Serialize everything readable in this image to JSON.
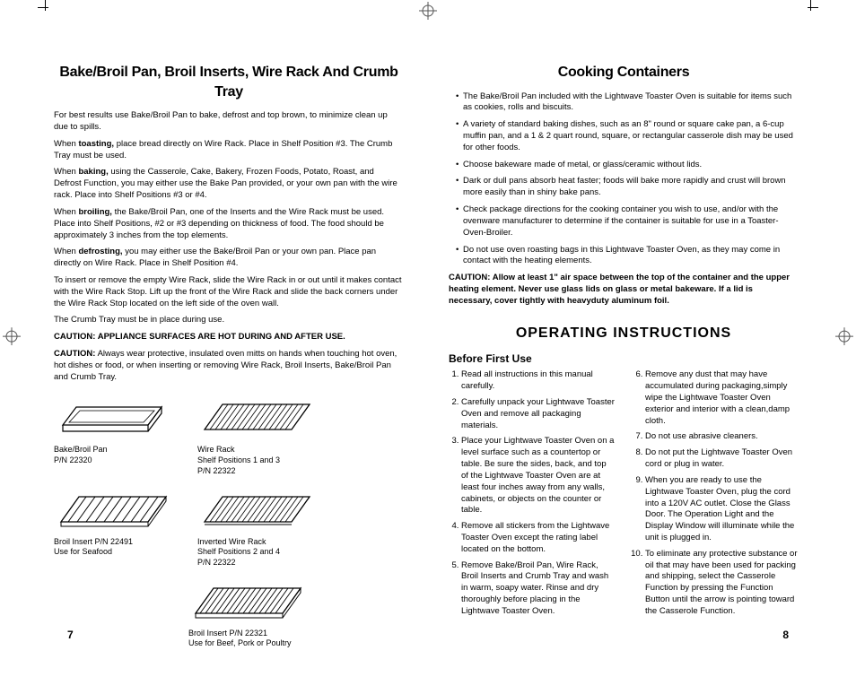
{
  "left_page": {
    "title": "Bake/Broil Pan, Broil Inserts, Wire Rack And Crumb Tray",
    "p1": "For best results use Bake/Broil Pan to bake, defrost and top brown, to minimize clean up due to spills.",
    "p2a": "When ",
    "p2b": "toasting,",
    "p2c": " place bread directly on Wire Rack. Place in Shelf Position #3. The Crumb Tray must be used.",
    "p3a": "When ",
    "p3b": "baking,",
    "p3c": " using the Casserole, Cake, Bakery, Frozen Foods, Potato, Roast, and Defrost Function, you may either use the Bake Pan provided, or your own pan with the wire rack. Place into Shelf Positions #3 or #4.",
    "p4a": "When ",
    "p4b": "broiling,",
    "p4c": " the Bake/Broil Pan, one of the Inserts and the Wire Rack must be used. Place into Shelf Positions, #2 or #3 depending on thickness of food. The food should be approximately 3 inches from the top elements.",
    "p5a": "When ",
    "p5b": "defrosting,",
    "p5c": " you may either use the Bake/Broil Pan or your own pan. Place pan directly on Wire Rack. Place in Shelf Position #4.",
    "p6": "To insert or remove the empty Wire Rack, slide the Wire Rack in or out until it makes contact with the Wire Rack Stop. Lift up the front of the Wire Rack and slide the back corners under the Wire Rack Stop located on the left side of the oven wall.",
    "p7": "The Crumb Tray must be in place during use.",
    "caution1": "CAUTION: APPLIANCE SURFACES ARE HOT DURING AND AFTER USE.",
    "caution2a": "CAUTION:",
    "caution2b": " Always wear protective, insulated oven mitts on hands when touching hot oven, hot dishes or food, or when inserting or removing Wire Rack, Broil Inserts, Bake/Broil Pan and Crumb Tray.",
    "figs": {
      "bakepan": "Bake/Broil Pan\nP/N 22320",
      "wirerack": "Wire Rack\nShelf Positions 1 and 3\nP/N 22322",
      "broil1": "Broil Insert  P/N 22491\nUse for Seafood",
      "inverted": "Inverted Wire Rack\nShelf Positions 2 and 4\nP/N 22322",
      "broil2": "Broil Insert  P/N 22321\nUse for Beef, Pork or Poultry"
    },
    "page_num": "7"
  },
  "right_page": {
    "title1": "Cooking Containers",
    "bullets": [
      "The Bake/Broil Pan included with the Lightwave Toaster Oven is suitable for items such as cookies, rolls and biscuits.",
      "A variety of standard baking dishes, such as an 8\" round or square cake pan, a 6-cup muffin pan, and a 1 & 2 quart round, square, or rectangular casserole dish may be used for other foods.",
      "Choose bakeware made of metal, or glass/ceramic without lids.",
      "Dark or dull pans absorb heat faster; foods will bake more rapidly and crust will brown more easily than in shiny bake pans.",
      "Check package directions for the cooking container you wish to use, and/or with  the ovenware manufacturer to determine if the container is suitable for use in a Toaster-Oven-Broiler.",
      "Do not use oven roasting bags in this Lightwave Toaster Oven, as they may come in contact with the heating elements."
    ],
    "caution": "CAUTION: Allow at least 1\" air space between the top of the container and the upper heating element. Never use glass lids on glass or metal bakeware. If a lid is necessary, cover tightly with heavyduty aluminum foil.",
    "title2": "OPERATING INSTRUCTIONS",
    "subtitle": "Before First Use",
    "steps_left": [
      "Read all instructions in this manual carefully.",
      "Carefully unpack your Lightwave Toaster Oven and remove all packaging materials.",
      "Place your Lightwave Toaster Oven on a level surface such as a countertop or table. Be sure the sides, back, and top of the Lightwave Toaster Oven are at least four inches away from any walls, cabinets, or objects on the counter or table.",
      "Remove all stickers from the Lightwave Toaster Oven except the rating label located on the bottom.",
      "Remove Bake/Broil Pan, Wire Rack, Broil Inserts and Crumb Tray and wash in warm, soapy water. Rinse and dry thoroughly before placing in the Lightwave Toaster Oven."
    ],
    "steps_right": [
      "Remove any dust that may have accumulated during packaging,simply wipe the Lightwave Toaster Oven exterior and interior with a clean,damp cloth.",
      "Do not use abrasive cleaners.",
      "Do not put the Lightwave Toaster Oven cord or plug in water.",
      "When you are ready to use the Lightwave Toaster Oven, plug the cord into a 120V AC outlet. Close the Glass Door. The Operation Light and the Display Window will illuminate while the unit is plugged in.",
      "To eliminate any protective substance or oil that may have been used for packing and shipping, select the Casserole Function by pressing the Function Button until the arrow is pointing toward the Casserole Function."
    ],
    "page_num": "8"
  }
}
